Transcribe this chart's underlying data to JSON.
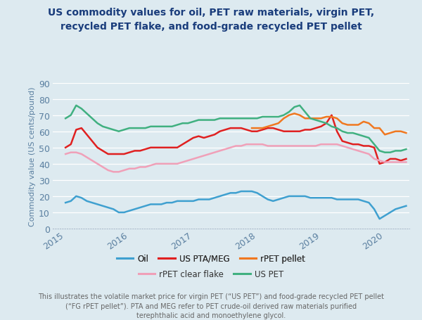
{
  "title": "US commodity values for oil, PET raw materials, virgin PET,\nrecycled PET flake, and food-grade recycled PET pellet",
  "ylabel": "Commodity value (US cents/pound)",
  "background_color": "#ddeaf0",
  "plot_bg_color": "#ddeaf0",
  "title_color": "#1a3d7c",
  "axis_color": "#5a7fa0",
  "ylim": [
    0,
    90
  ],
  "yticks": [
    0,
    10,
    20,
    30,
    40,
    50,
    60,
    70,
    80,
    90
  ],
  "footer_text": "This illustrates the volatile market price for virgin PET (“US PET”) and food-grade recycled PET pellet\n(“FG rPET pellet”). PTA and MEG refer to PET crude-oil derived raw materials purified\nterephthalic acid and monoethylene glycol.",
  "series": {
    "Oil": {
      "color": "#3fa0d0",
      "linewidth": 1.8,
      "data": [
        16,
        17,
        20,
        19,
        17,
        16,
        15,
        14,
        13,
        12,
        10,
        10,
        11,
        12,
        13,
        14,
        15,
        15,
        15,
        16,
        16,
        17,
        17,
        17,
        17,
        18,
        18,
        18,
        19,
        20,
        21,
        22,
        22,
        23,
        23,
        23,
        22,
        20,
        18,
        17,
        18,
        19,
        20,
        20,
        20,
        20,
        19,
        19,
        19,
        19,
        19,
        18,
        18,
        18,
        18,
        18,
        17,
        16,
        12,
        6,
        8,
        10,
        12,
        13,
        14
      ]
    },
    "US PTA/MEG": {
      "color": "#e02020",
      "linewidth": 1.8,
      "data": [
        50,
        52,
        61,
        62,
        58,
        54,
        50,
        48,
        46,
        46,
        46,
        46,
        47,
        48,
        48,
        49,
        50,
        50,
        50,
        50,
        50,
        50,
        52,
        54,
        56,
        57,
        56,
        57,
        58,
        60,
        61,
        62,
        62,
        62,
        61,
        60,
        60,
        61,
        62,
        62,
        61,
        60,
        60,
        60,
        60,
        61,
        61,
        62,
        63,
        65,
        70,
        60,
        54,
        53,
        52,
        52,
        51,
        51,
        50,
        40,
        41,
        43,
        43,
        42,
        43
      ]
    },
    "rPET pellet": {
      "color": "#f07820",
      "linewidth": 1.8,
      "data": [
        null,
        null,
        null,
        null,
        null,
        null,
        null,
        null,
        null,
        null,
        null,
        null,
        null,
        null,
        null,
        null,
        null,
        null,
        null,
        null,
        null,
        null,
        null,
        null,
        null,
        null,
        null,
        null,
        null,
        null,
        null,
        null,
        null,
        null,
        null,
        62,
        62,
        62,
        63,
        64,
        65,
        68,
        70,
        71,
        70,
        68,
        68,
        68,
        68,
        69,
        69,
        68,
        65,
        64,
        64,
        64,
        66,
        65,
        62,
        62,
        58,
        59,
        60,
        60,
        59
      ]
    },
    "rPET clear flake": {
      "color": "#f0a0b8",
      "linewidth": 1.8,
      "data": [
        46,
        47,
        47,
        46,
        44,
        42,
        40,
        38,
        36,
        35,
        35,
        36,
        37,
        37,
        38,
        38,
        39,
        40,
        40,
        40,
        40,
        40,
        41,
        42,
        43,
        44,
        45,
        46,
        47,
        48,
        49,
        50,
        51,
        51,
        52,
        52,
        52,
        52,
        51,
        51,
        51,
        51,
        51,
        51,
        51,
        51,
        51,
        51,
        52,
        52,
        52,
        52,
        51,
        50,
        49,
        48,
        47,
        46,
        43,
        42,
        41,
        41,
        41,
        41,
        41
      ]
    },
    "US PET": {
      "color": "#40b080",
      "linewidth": 1.8,
      "data": [
        68,
        70,
        76,
        74,
        71,
        68,
        65,
        63,
        62,
        61,
        60,
        61,
        62,
        62,
        62,
        62,
        63,
        63,
        63,
        63,
        63,
        64,
        65,
        65,
        66,
        67,
        67,
        67,
        67,
        68,
        68,
        68,
        68,
        68,
        68,
        68,
        68,
        69,
        69,
        69,
        69,
        70,
        72,
        75,
        76,
        72,
        68,
        67,
        66,
        65,
        63,
        62,
        60,
        59,
        59,
        58,
        57,
        56,
        52,
        48,
        47,
        47,
        48,
        48,
        49
      ]
    }
  },
  "n_points": 65,
  "x_tick_years": [
    2015,
    2016,
    2017,
    2018,
    2019,
    2020
  ],
  "legend_order": [
    "Oil",
    "US PTA/MEG",
    "rPET pellet",
    "rPET clear flake",
    "US PET"
  ]
}
